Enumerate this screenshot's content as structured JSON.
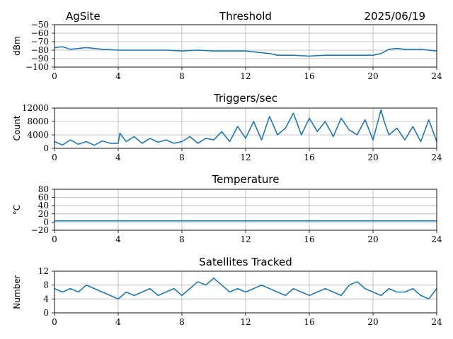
{
  "header": {
    "site": "AgSite",
    "date": "2025/06/19"
  },
  "line_color": "#1f77b4",
  "chart_data": [
    {
      "type": "line",
      "title": "Threshold",
      "ylabel": "dBm",
      "xlabel": "",
      "xlim": [
        0,
        24
      ],
      "ylim": [
        -100,
        -50
      ],
      "xticks": [
        "0",
        "4",
        "8",
        "12",
        "16",
        "20",
        "24"
      ],
      "yticks": [
        "−50",
        "−60",
        "−70",
        "−80",
        "−90",
        "−100"
      ],
      "yticks_values": [
        -50,
        -60,
        -70,
        -80,
        -90,
        -100
      ],
      "grid": true,
      "x": [
        0,
        0.5,
        1,
        1.5,
        2,
        3,
        4,
        5,
        6,
        7,
        8,
        9,
        10,
        11,
        12,
        12.5,
        13,
        13.5,
        14,
        15,
        16,
        17,
        18,
        19,
        20,
        20.5,
        21,
        21.5,
        22,
        23,
        24
      ],
      "y": [
        -77,
        -76,
        -79,
        -78,
        -77,
        -79,
        -80,
        -80,
        -80,
        -80,
        -81,
        -80,
        -81,
        -81,
        -81,
        -82,
        -83,
        -84,
        -86,
        -86,
        -87,
        -86,
        -86,
        -86,
        -86,
        -84,
        -79,
        -78,
        -79,
        -79,
        -81
      ]
    },
    {
      "type": "line",
      "title": "Triggers/sec",
      "ylabel": "Count",
      "xlabel": "",
      "xlim": [
        0,
        24
      ],
      "ylim": [
        0,
        12000
      ],
      "xticks": [
        "0",
        "4",
        "8",
        "12",
        "16",
        "20",
        "24"
      ],
      "yticks": [
        "0",
        "4000",
        "8000",
        "12000"
      ],
      "yticks_values": [
        0,
        4000,
        8000,
        12000
      ],
      "grid": true,
      "x": [
        0,
        0.5,
        1,
        1.5,
        2,
        2.5,
        3,
        3.5,
        4,
        4.1,
        4.5,
        5,
        5.5,
        6,
        6.5,
        7,
        7.5,
        8,
        8.5,
        9,
        9.5,
        10,
        10.5,
        11,
        11.5,
        12,
        12.5,
        13,
        13.5,
        14,
        14.5,
        15,
        15.5,
        16,
        16.5,
        17,
        17.5,
        18,
        18.5,
        19,
        19.5,
        20,
        20.5,
        20.7,
        21,
        21.5,
        22,
        22.5,
        23,
        23.5,
        24
      ],
      "y": [
        2000,
        1000,
        2500,
        1200,
        2000,
        900,
        2200,
        1500,
        1500,
        4500,
        2000,
        3500,
        1500,
        3000,
        1800,
        2500,
        1500,
        2000,
        3500,
        1500,
        3000,
        2500,
        5000,
        2000,
        6500,
        3000,
        8000,
        2500,
        9500,
        4000,
        6000,
        10500,
        4000,
        9000,
        5000,
        8000,
        3500,
        9000,
        5500,
        4000,
        8500,
        2500,
        11500,
        8000,
        4000,
        6000,
        2500,
        6500,
        2000,
        8500,
        2000
      ]
    },
    {
      "type": "line",
      "title": "Temperature",
      "ylabel": "°C",
      "xlabel": "",
      "xlim": [
        0,
        24
      ],
      "ylim": [
        -20,
        80
      ],
      "xticks": [
        "0",
        "4",
        "8",
        "12",
        "16",
        "20",
        "24"
      ],
      "yticks": [
        "80",
        "60",
        "40",
        "20",
        "0",
        "−20"
      ],
      "yticks_values": [
        80,
        60,
        40,
        20,
        0,
        -20
      ],
      "grid": true,
      "x": [
        0,
        24
      ],
      "y": [
        3,
        3
      ]
    },
    {
      "type": "line",
      "title": "Satellites Tracked",
      "ylabel": "Number",
      "xlabel": "",
      "xlim": [
        0,
        24
      ],
      "ylim": [
        0,
        12
      ],
      "xticks": [
        "0",
        "4",
        "8",
        "12",
        "16",
        "20",
        "24"
      ],
      "yticks": [
        "0",
        "4",
        "8",
        "12"
      ],
      "yticks_values": [
        0,
        4,
        8,
        12
      ],
      "grid": true,
      "x": [
        0,
        0.5,
        1,
        1.5,
        2,
        2.5,
        3,
        3.5,
        4,
        4.5,
        5,
        5.5,
        6,
        6.5,
        7,
        7.5,
        8,
        8.5,
        9,
        9.5,
        10,
        10.5,
        11,
        11.5,
        12,
        12.5,
        13,
        13.5,
        14,
        14.5,
        15,
        15.5,
        16,
        16.5,
        17,
        17.5,
        18,
        18.5,
        19,
        19.5,
        20,
        20.5,
        21,
        21.5,
        22,
        22.5,
        23,
        23.5,
        24
      ],
      "y": [
        7,
        6,
        7,
        6,
        8,
        7,
        6,
        5,
        4,
        6,
        5,
        6,
        7,
        5,
        6,
        7,
        5,
        7,
        9,
        8,
        10,
        8,
        6,
        7,
        6,
        7,
        8,
        7,
        6,
        5,
        7,
        6,
        5,
        6,
        7,
        6,
        5,
        8,
        9,
        7,
        6,
        5,
        7,
        6,
        6,
        7,
        5,
        4,
        7
      ]
    }
  ]
}
